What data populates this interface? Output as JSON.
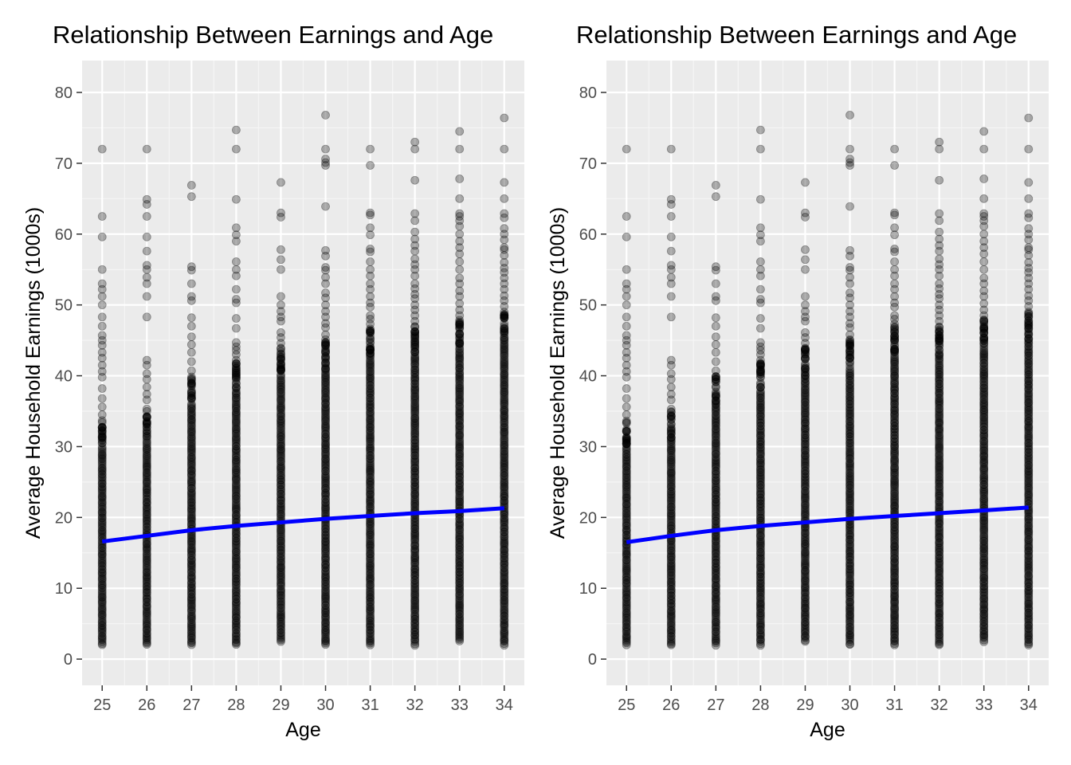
{
  "colors": {
    "panel_background": "#ebebeb",
    "grid_major": "#ffffff",
    "grid_minor": "#f5f5f5",
    "point": "#000000",
    "trend_line": "#0000ff",
    "tick_text": "#4d4d4d",
    "text": "#000000"
  },
  "chart_data": [
    {
      "type": "scatter",
      "title": "Relationship Between Earnings and Age",
      "xlabel": "Age",
      "ylabel": "Average Household Earnings (1000s)",
      "xlim": [
        24.55,
        34.45
      ],
      "ylim": [
        -3.7,
        84.5
      ],
      "x_ticks": [
        25,
        26,
        27,
        28,
        29,
        30,
        31,
        32,
        33,
        34
      ],
      "y_ticks": [
        0,
        10,
        20,
        30,
        40,
        50,
        60,
        70,
        80
      ],
      "grid": true,
      "point_alpha": 0.3,
      "point_color": "#000000",
      "points_note": "dense columns of points at each integer age from about 2 up to 35-45, plus sparse outliers",
      "dense_range": {
        "25": [
          2,
          30
        ],
        "26": [
          2,
          31
        ],
        "27": [
          2,
          36
        ],
        "28": [
          2,
          38
        ],
        "29": [
          2.5,
          40
        ],
        "30": [
          2,
          41
        ],
        "31": [
          2,
          43
        ],
        "32": [
          2,
          43
        ],
        "33": [
          2.5,
          44
        ],
        "34": [
          2,
          45
        ]
      },
      "outliers": {
        "25": [
          72,
          62.5,
          59.6,
          55,
          53,
          52.2,
          51.2,
          50,
          48.3,
          47,
          45.7,
          45,
          44.3,
          43.3,
          42.5,
          41.5,
          40.6,
          39.8,
          38.2,
          36.8,
          35.6,
          34.5,
          33.4,
          32.2,
          31.2
        ],
        "26": [
          72,
          64.9,
          64.2,
          62.5,
          59.6,
          57.6,
          55.6,
          55,
          53.9,
          53,
          51.2,
          48.3,
          42.2,
          41.5,
          40.3,
          39.5,
          38.4,
          37.4,
          36.6,
          35.3,
          34.2,
          33.1,
          32.2
        ],
        "27": [
          66.9,
          65.3,
          55.4,
          54.9,
          53,
          51.2,
          50.6,
          48.2,
          47,
          45.5,
          44.4,
          43.3,
          42,
          40.7,
          39.5,
          38.5,
          37.2
        ],
        "28": [
          74.7,
          72,
          64.9,
          60.9,
          59.9,
          59,
          56.1,
          55,
          54.1,
          52.2,
          50.8,
          50.3,
          48.1,
          46.7,
          44.7,
          44.1,
          43.6,
          43,
          42.2,
          41.7,
          40.8,
          39.9,
          39
        ],
        "29": [
          67.3,
          63,
          62.4,
          57.8,
          56.4,
          55,
          51.2,
          50,
          49.1,
          48.3,
          47.7,
          46.1,
          45.4,
          44.6,
          43.8,
          43.1,
          42.4,
          41.7,
          40.9
        ],
        "30": [
          76.8,
          72,
          70.6,
          70.1,
          69.7,
          63.9,
          57.7,
          56.9,
          55.3,
          54.9,
          53.9,
          53,
          51.7,
          51,
          50,
          49.1,
          48.3,
          47.4,
          46.8,
          45.8,
          45.1,
          44.2,
          43.4,
          42.5,
          41.8
        ],
        "31": [
          72,
          69.7,
          63,
          62.7,
          60.9,
          59.9,
          57.9,
          57.5,
          56.1,
          55,
          54.1,
          53,
          52.2,
          51.2,
          50.3,
          49.7,
          48.5,
          48,
          47.3,
          46.4,
          45.6,
          44.8,
          44.1,
          43.6
        ],
        "32": [
          73,
          72,
          67.6,
          62.9,
          61.9,
          60.3,
          59.3,
          58.4,
          57.6,
          56.5,
          55.7,
          55,
          54.1,
          53,
          52.3,
          51.5,
          50.9,
          50,
          49.3,
          48.5,
          47.7,
          46.9,
          46.2,
          45.3,
          44.6,
          43.7
        ],
        "33": [
          74.5,
          72,
          67.8,
          65,
          62.9,
          62.5,
          61.9,
          61.1,
          60,
          59,
          58.1,
          57.2,
          56.1,
          55,
          53.8,
          53,
          52,
          51.2,
          50.2,
          49.3,
          48.5,
          47.6,
          46.8,
          46,
          45.3,
          44.6
        ],
        "34": [
          76.4,
          72,
          67.3,
          65,
          62.9,
          62.3,
          60.8,
          60,
          59.2,
          58.1,
          57.8,
          57,
          56,
          55.2,
          54.6,
          53.8,
          53,
          52.2,
          51.3,
          50.6,
          49.8,
          49,
          48.2,
          47.4,
          46.6,
          45.8
        ]
      },
      "trend_line": {
        "color": "#0000ff",
        "x": [
          25,
          26,
          27,
          28,
          29,
          30,
          31,
          32,
          33,
          34
        ],
        "y": [
          16.6,
          17.4,
          18.2,
          18.8,
          19.3,
          19.8,
          20.2,
          20.6,
          20.9,
          21.3
        ]
      }
    },
    {
      "type": "scatter",
      "title": "Relationship Between Earnings and Age",
      "xlabel": "Age",
      "ylabel": "Average Household Earnings (1000s)",
      "xlim": [
        24.55,
        34.45
      ],
      "ylim": [
        -3.7,
        84.5
      ],
      "x_ticks": [
        25,
        26,
        27,
        28,
        29,
        30,
        31,
        32,
        33,
        34
      ],
      "y_ticks": [
        0,
        10,
        20,
        30,
        40,
        50,
        60,
        70,
        80
      ],
      "grid": true,
      "point_alpha": 0.3,
      "point_color": "#000000",
      "points_note": "same data as the first panel",
      "dense_range": {
        "25": [
          2,
          30
        ],
        "26": [
          2,
          31
        ],
        "27": [
          2,
          36
        ],
        "28": [
          2,
          38
        ],
        "29": [
          2.5,
          40
        ],
        "30": [
          2,
          41
        ],
        "31": [
          2,
          43
        ],
        "32": [
          2,
          43
        ],
        "33": [
          2.5,
          44
        ],
        "34": [
          2,
          45
        ]
      },
      "outliers": {
        "25": [
          72,
          62.5,
          59.6,
          55,
          53,
          52.2,
          51.2,
          50,
          48.3,
          47,
          45.7,
          45,
          44.3,
          43.3,
          42.5,
          41.5,
          40.6,
          39.8,
          38.2,
          36.8,
          35.6,
          34.5,
          33.4,
          32.2,
          31.2
        ],
        "26": [
          72,
          64.9,
          64.2,
          62.5,
          59.6,
          57.6,
          55.6,
          55,
          53.9,
          53,
          51.2,
          48.3,
          42.2,
          41.5,
          40.3,
          39.5,
          38.4,
          37.4,
          36.6,
          35.3,
          34.2,
          33.1,
          32.2
        ],
        "27": [
          66.9,
          65.3,
          55.4,
          54.9,
          53,
          51.2,
          50.6,
          48.2,
          47,
          45.5,
          44.4,
          43.3,
          42,
          40.7,
          39.5,
          38.5,
          37.2
        ],
        "28": [
          74.7,
          72,
          64.9,
          60.9,
          59.9,
          59,
          56.1,
          55,
          54.1,
          52.2,
          50.8,
          50.3,
          48.1,
          46.7,
          44.7,
          44.1,
          43.6,
          43,
          42.2,
          41.7,
          40.8,
          39.9,
          39
        ],
        "29": [
          67.3,
          63,
          62.4,
          57.8,
          56.4,
          55,
          51.2,
          50,
          49.1,
          48.3,
          47.7,
          46.1,
          45.4,
          44.6,
          43.8,
          43.1,
          42.4,
          41.7,
          40.9
        ],
        "30": [
          76.8,
          72,
          70.6,
          70.1,
          69.7,
          63.9,
          57.7,
          56.9,
          55.3,
          54.9,
          53.9,
          53,
          51.7,
          51,
          50,
          49.1,
          48.3,
          47.4,
          46.8,
          45.8,
          45.1,
          44.2,
          43.4,
          42.5,
          41.8
        ],
        "31": [
          72,
          69.7,
          63,
          62.7,
          60.9,
          59.9,
          57.9,
          57.5,
          56.1,
          55,
          54.1,
          53,
          52.2,
          51.2,
          50.3,
          49.7,
          48.5,
          48,
          47.3,
          46.4,
          45.6,
          44.8,
          44.1,
          43.6
        ],
        "32": [
          73,
          72,
          67.6,
          62.9,
          61.9,
          60.3,
          59.3,
          58.4,
          57.6,
          56.5,
          55.7,
          55,
          54.1,
          53,
          52.3,
          51.5,
          50.9,
          50,
          49.3,
          48.5,
          47.7,
          46.9,
          46.2,
          45.3,
          44.6,
          43.7
        ],
        "33": [
          74.5,
          72,
          67.8,
          65,
          62.9,
          62.5,
          61.9,
          61.1,
          60,
          59,
          58.1,
          57.2,
          56.1,
          55,
          53.8,
          53,
          52,
          51.2,
          50.2,
          49.3,
          48.5,
          47.6,
          46.8,
          46,
          45.3,
          44.6
        ],
        "34": [
          76.4,
          72,
          67.3,
          65,
          62.9,
          62.3,
          60.8,
          60,
          59.2,
          58.1,
          57.8,
          57,
          56,
          55.2,
          54.6,
          53.8,
          53,
          52.2,
          51.3,
          50.6,
          49.8,
          49,
          48.2,
          47.4,
          46.6,
          45.8
        ]
      },
      "trend_line": {
        "color": "#0000ff",
        "x": [
          25,
          26,
          27,
          28,
          29,
          30,
          31,
          32,
          33,
          34
        ],
        "y": [
          16.5,
          17.4,
          18.2,
          18.8,
          19.3,
          19.8,
          20.2,
          20.6,
          21.0,
          21.4
        ]
      }
    }
  ]
}
